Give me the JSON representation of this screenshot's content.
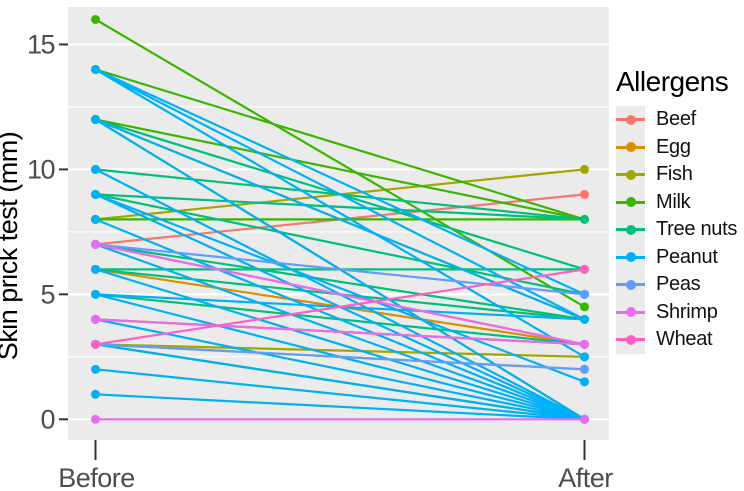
{
  "colors": {
    "page_bg": "#FFFFFF",
    "panel_bg": "#EBEBEB",
    "gridline": "#FFFFFF",
    "tick_mark": "#333333",
    "tick_label_text": "#4D4D4D",
    "axis_title_text": "#000000"
  },
  "chart_data": {
    "type": "line",
    "subtype": "paired-slopegraph",
    "title": "",
    "ylabel": "Skin prick test (mm)",
    "xlabel": "",
    "x_categories": [
      "Before",
      "After"
    ],
    "y_ticks": [
      0,
      5,
      10,
      15
    ],
    "y_minor_gridlines": [
      2.5,
      7.5,
      12.5
    ],
    "ylim": [
      -0.8,
      16.8
    ],
    "grid": "on",
    "legend_title": "Allergens",
    "legend_position": "right",
    "series": [
      {
        "name": "Beef",
        "color": "#F8766D",
        "pairs": [
          [
            7,
            9
          ]
        ]
      },
      {
        "name": "Egg",
        "color": "#D89000",
        "pairs": [
          [
            12,
            4
          ],
          [
            7,
            3
          ],
          [
            6,
            3
          ],
          [
            4,
            3
          ]
        ]
      },
      {
        "name": "Fish",
        "color": "#A3A500",
        "pairs": [
          [
            8,
            10
          ],
          [
            4,
            3
          ],
          [
            3,
            2.5
          ],
          [
            3,
            2
          ]
        ]
      },
      {
        "name": "Milk",
        "color": "#39B600",
        "pairs": [
          [
            16,
            4.5
          ],
          [
            14,
            8
          ],
          [
            12,
            8
          ],
          [
            8,
            8
          ],
          [
            12,
            0
          ],
          [
            3,
            0
          ]
        ]
      },
      {
        "name": "Tree nuts",
        "color": "#00BF7D",
        "pairs": [
          [
            10,
            8
          ],
          [
            9,
            8
          ],
          [
            12,
            6
          ],
          [
            9,
            5
          ],
          [
            7,
            4
          ],
          [
            6,
            6
          ],
          [
            6,
            4
          ],
          [
            5,
            3
          ]
        ]
      },
      {
        "name": "Peanut",
        "color": "#00B0F6",
        "pairs": [
          [
            14,
            5
          ],
          [
            14,
            4
          ],
          [
            14,
            2.5
          ],
          [
            12,
            4
          ],
          [
            12,
            0
          ],
          [
            10,
            0
          ],
          [
            9,
            1.5
          ],
          [
            9,
            0
          ],
          [
            8,
            0
          ],
          [
            7,
            0
          ],
          [
            6,
            0
          ],
          [
            5,
            4
          ],
          [
            5,
            0
          ],
          [
            4,
            0
          ],
          [
            3,
            0
          ],
          [
            2,
            0
          ],
          [
            1,
            0
          ]
        ]
      },
      {
        "name": "Peas",
        "color": "#619CFF",
        "pairs": [
          [
            7,
            5
          ],
          [
            3,
            2
          ]
        ]
      },
      {
        "name": "Shrimp",
        "color": "#E76BF3",
        "pairs": [
          [
            0,
            0
          ],
          [
            7,
            3
          ],
          [
            4,
            3
          ]
        ]
      },
      {
        "name": "Wheat",
        "color": "#FF61C3",
        "pairs": [
          [
            3,
            6
          ]
        ]
      }
    ]
  }
}
